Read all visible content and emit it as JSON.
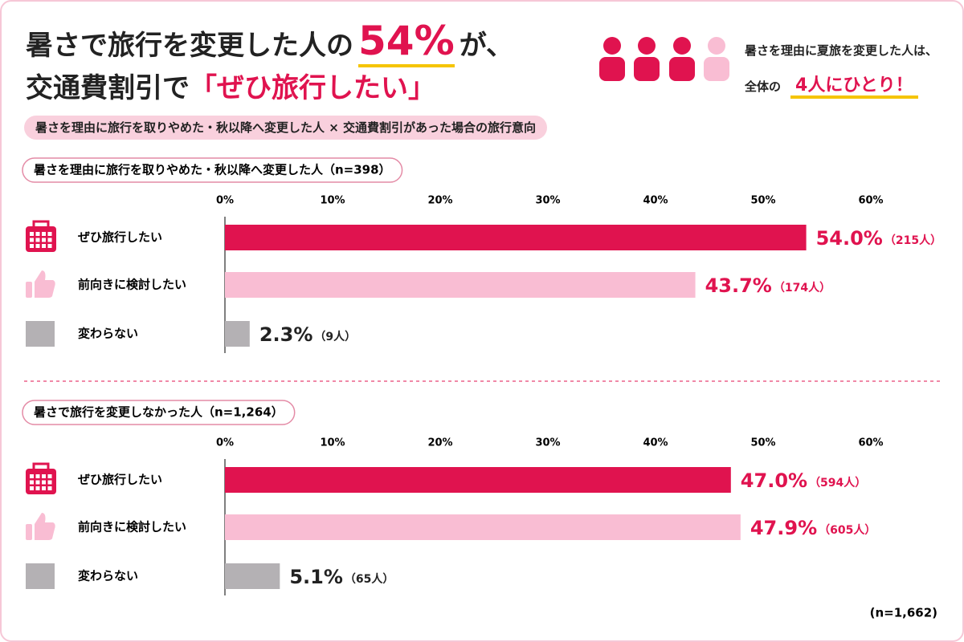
{
  "header": {
    "title_pre": "暑さで旅行を変更した人の",
    "title_highlight": "54%",
    "title_post": "が、",
    "title_line2_pre": "交通費割引で",
    "title_line2_highlight": "「ぜひ旅行したい」",
    "side_note_line1": "暑さを理由に夏旅を変更した人は、",
    "side_note_pre": "全体の",
    "side_note_highlight": "4人にひとり！",
    "subtitle": "暑さを理由に旅行を取りやめた・秋以降へ変更した人 × 交通費割引があった場合の旅行意向"
  },
  "chart_data": [
    {
      "type": "bar",
      "orientation": "horizontal",
      "title": "暑さを理由に旅行を取りやめた・秋以降へ変更した人（n=398）",
      "categories": [
        "ぜひ旅行したい",
        "前向きに検討したい",
        "変わらない"
      ],
      "values": [
        54.0,
        43.7,
        2.3
      ],
      "value_labels": [
        "54.0%",
        "43.7%",
        "2.3%"
      ],
      "count_labels": [
        "（215人）",
        "（174人）",
        "（9人）"
      ],
      "colors": [
        "#e0134f",
        "#f9bdd3",
        "#b4b1b4"
      ],
      "value_label_colors": [
        "#e0134f",
        "#e0134f",
        "#222222"
      ],
      "xlim": [
        0,
        60
      ],
      "xticks": [
        {
          "value": 0,
          "label": "0%"
        },
        {
          "value": 10,
          "label": "10%"
        },
        {
          "value": 20,
          "label": "20%"
        },
        {
          "value": 30,
          "label": "30%"
        },
        {
          "value": 40,
          "label": "40%"
        },
        {
          "value": 50,
          "label": "50%"
        },
        {
          "value": 60,
          "label": "60%"
        }
      ]
    },
    {
      "type": "bar",
      "orientation": "horizontal",
      "title": "暑さで旅行を変更しなかった人（n=1,264）",
      "categories": [
        "ぜひ旅行したい",
        "前向きに検討したい",
        "変わらない"
      ],
      "values": [
        47.0,
        47.9,
        5.1
      ],
      "value_labels": [
        "47.0%",
        "47.9%",
        "5.1%"
      ],
      "count_labels": [
        "（594人）",
        "（605人）",
        "（65人）"
      ],
      "colors": [
        "#e0134f",
        "#f9bdd3",
        "#b4b1b4"
      ],
      "value_label_colors": [
        "#e0134f",
        "#e0134f",
        "#222222"
      ],
      "xlim": [
        0,
        60
      ],
      "xticks": [
        {
          "value": 0,
          "label": "0%"
        },
        {
          "value": 10,
          "label": "10%"
        },
        {
          "value": 20,
          "label": "20%"
        },
        {
          "value": 30,
          "label": "30%"
        },
        {
          "value": 40,
          "label": "40%"
        },
        {
          "value": 50,
          "label": "50%"
        },
        {
          "value": 60,
          "label": "60%"
        }
      ]
    }
  ],
  "footnote": "(n=1,662)"
}
